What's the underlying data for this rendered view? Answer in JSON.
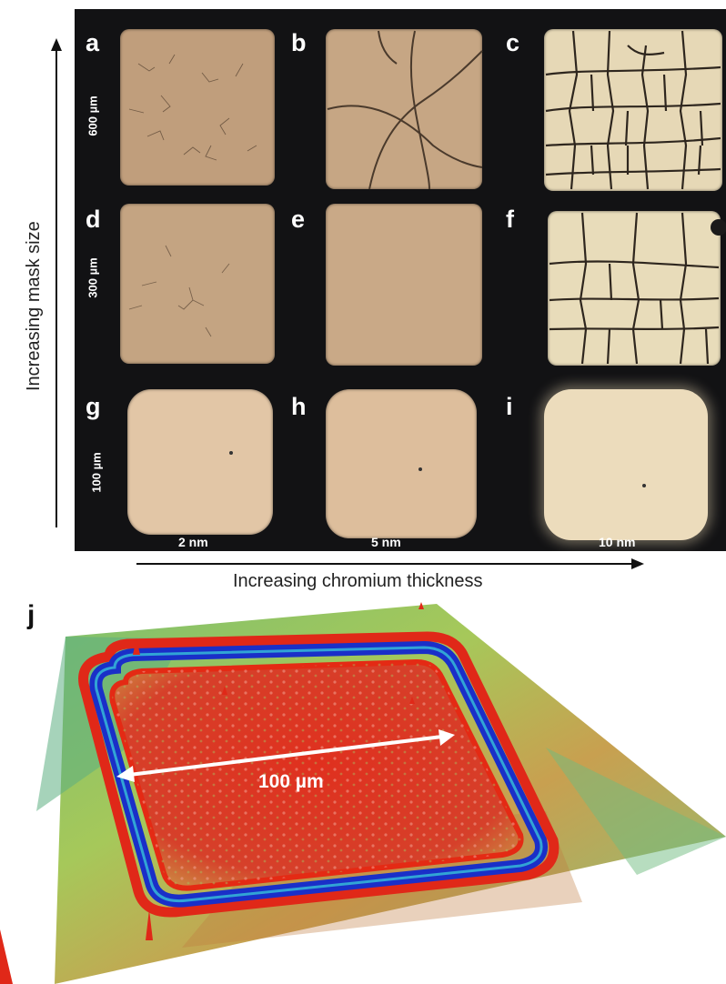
{
  "figure": {
    "vertical_axis_label": "Increasing mask size",
    "horizontal_axis_label": "Increasing chromium thickness",
    "mask_sizes": [
      "600 µm",
      "300 µm",
      "100 µm"
    ],
    "thicknesses": [
      "2 nm",
      "5 nm",
      "10 nm"
    ],
    "panels": [
      {
        "letter": "a",
        "color": "#c09e7c"
      },
      {
        "letter": "b",
        "color": "#c6a684"
      },
      {
        "letter": "c",
        "color": "#e6d8b6"
      },
      {
        "letter": "d",
        "color": "#c4a482"
      },
      {
        "letter": "e",
        "color": "#c9a987"
      },
      {
        "letter": "f",
        "color": "#e8dcba"
      },
      {
        "letter": "g",
        "color": "#e2c6a6"
      },
      {
        "letter": "h",
        "color": "#ddbe9c"
      },
      {
        "letter": "i",
        "color": "#ecdcbc"
      }
    ],
    "panel_j": {
      "letter": "j",
      "scale_label": "100 µm"
    }
  }
}
